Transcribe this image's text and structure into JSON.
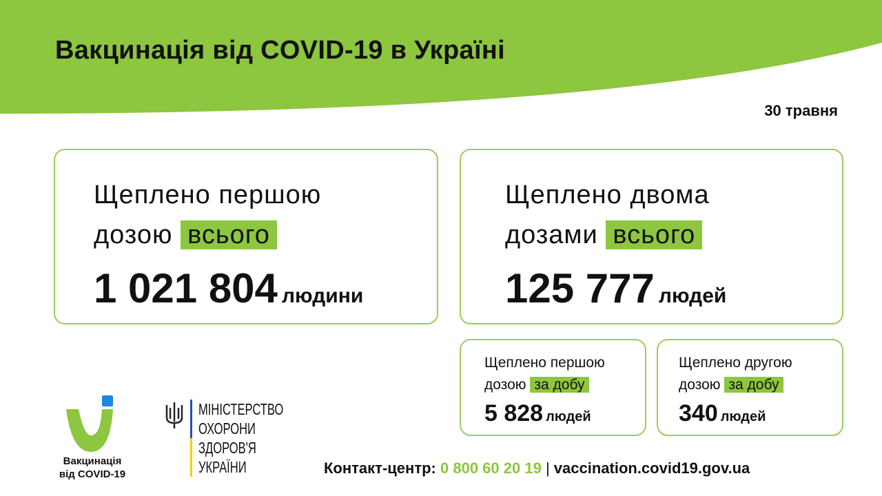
{
  "header": {
    "title": "Вакцинація від COVID-19 в Україні",
    "date": "30 травня"
  },
  "total_first": {
    "line1": "Щеплено першою",
    "line2": "дозою",
    "highlight": "всього",
    "value": "1 021 804",
    "unit": "людини"
  },
  "total_second": {
    "line1": "Щеплено двома",
    "line2": "дозами",
    "highlight": "всього",
    "value": "125 777",
    "unit": "людей"
  },
  "daily_first": {
    "line1": "Щеплено першою",
    "line2": "дозою",
    "highlight": "за добу",
    "value": "5 828",
    "unit": "людей"
  },
  "daily_second": {
    "line1": "Щеплено другою",
    "line2": "дозою",
    "highlight": "за добу",
    "value": "340",
    "unit": "людей"
  },
  "logo": {
    "line1": "Вакцинація",
    "line2": "від COVID-19"
  },
  "ministry": {
    "lines": [
      "МІНІСТЕРСТВО",
      "ОХОРОНИ",
      "ЗДОРОВ'Я",
      "УКРАЇНИ"
    ]
  },
  "footer": {
    "label": "Контакт-центр:",
    "phone": "0 800 60 20 19",
    "separator": "|",
    "website": "vaccination.covid19.gov.ua"
  },
  "colors": {
    "accent": "#8dc63f",
    "logo_blue": "#1e88d8",
    "flag_blue": "#2a4bb5",
    "flag_yellow": "#f5d000"
  }
}
